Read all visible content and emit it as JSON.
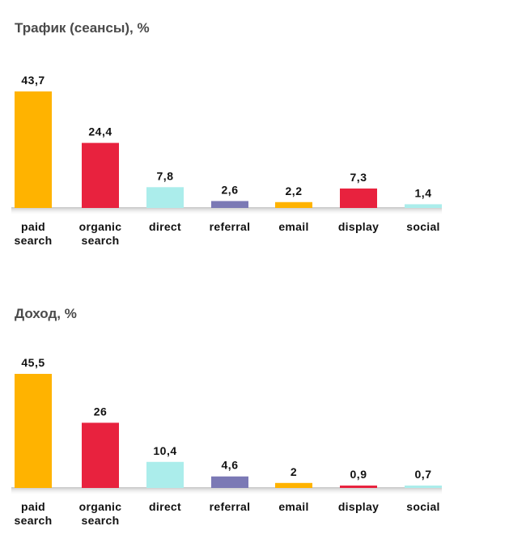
{
  "colors": {
    "paid_search": "#FFB300",
    "organic_search": "#E8223E",
    "direct": "#ABEDEB",
    "referral": "#7B79B5",
    "email": "#FFB300",
    "display": "#E8223E",
    "social": "#ABEDEB",
    "baseline_shadow": "#D6D6D6"
  },
  "chart_data": [
    {
      "type": "bar",
      "title": "Трафик (сеансы), %",
      "categories": [
        [
          "paid",
          "search"
        ],
        [
          "organic",
          "search"
        ],
        [
          "direct"
        ],
        [
          "referral"
        ],
        [
          "email"
        ],
        [
          "display"
        ],
        [
          "social"
        ]
      ],
      "values": [
        43.7,
        24.4,
        7.8,
        2.6,
        2.2,
        7.3,
        1.4
      ],
      "value_labels": [
        "43,7",
        "24,4",
        "7,8",
        "2,6",
        "2,2",
        "7,3",
        "1,4"
      ],
      "bar_colors": [
        "#FFB300",
        "#E8223E",
        "#ABEDEB",
        "#7B79B5",
        "#FFB300",
        "#E8223E",
        "#ABEDEB"
      ],
      "ylim": [
        0,
        43.7
      ],
      "grid": false,
      "legend": "none"
    },
    {
      "type": "bar",
      "title": "Доход, %",
      "categories": [
        [
          "paid",
          "search"
        ],
        [
          "organic",
          "search"
        ],
        [
          "direct"
        ],
        [
          "referral"
        ],
        [
          "email"
        ],
        [
          "display"
        ],
        [
          "social"
        ]
      ],
      "values": [
        45.5,
        26,
        10.4,
        4.6,
        2,
        0.9,
        0.7
      ],
      "value_labels": [
        "45,5",
        "26",
        "10,4",
        "4,6",
        "2",
        "0,9",
        "0,7"
      ],
      "bar_colors": [
        "#FFB300",
        "#E8223E",
        "#ABEDEB",
        "#7B79B5",
        "#FFB300",
        "#E8223E",
        "#ABEDEB"
      ],
      "ylim": [
        0,
        45.5
      ],
      "grid": false,
      "legend": "none"
    }
  ]
}
